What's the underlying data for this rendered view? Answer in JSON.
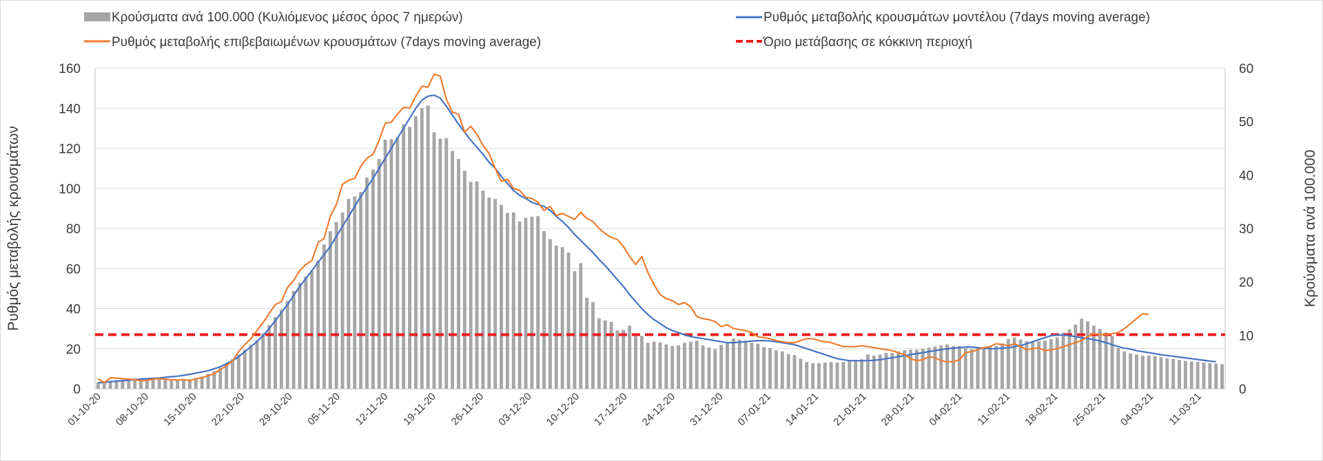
{
  "chart_data": {
    "type": "bar+line",
    "legend": {
      "bars": "Κρούσματα ανά 100.000 (Κυλιόμενος μέσος όρος 7 ημερών)",
      "model": "Ρυθμός μεταβολής κρουσμάτων μοντέλου (7days moving average)",
      "confirmed": "Ρυθμός μεταβολής επιβεβαιωμένων κρουσμάτων (7days moving average)",
      "threshold": "Όριο μετάβασης σε κόκκινη περιοχή"
    },
    "ylabel_left": "Ρυθμός μεταβολής κρουσμάτων",
    "ylabel_right": "Κρούσματα ανά 100.000",
    "ylim_left": [
      0,
      160
    ],
    "ylim_right": [
      0,
      60
    ],
    "yticks_left": [
      "0",
      "20",
      "40",
      "60",
      "80",
      "100",
      "120",
      "140",
      "160"
    ],
    "yticks_right": [
      "0",
      "10",
      "20",
      "30",
      "40",
      "50",
      "60"
    ],
    "x_tick_labels": [
      "01-10-20",
      "08-10-20",
      "15-10-20",
      "22-10-20",
      "29-10-20",
      "05-11-20",
      "12-11-20",
      "19-11-20",
      "26-11-20",
      "03-12-20",
      "10-12-20",
      "17-12-20",
      "24-12-20",
      "31-12-20",
      "07-01-21",
      "14-01-21",
      "21-01-21",
      "28-01-21",
      "04-02-21",
      "11-02-21",
      "18-02-21",
      "25-02-21",
      "04-03-21",
      "11-03-21"
    ],
    "threshold_value": 27,
    "bar_values_per_100k": [
      1.2,
      1.4,
      1.5,
      1.6,
      1.7,
      1.8,
      1.9,
      2.0,
      2.0,
      2.1,
      2.0,
      1.8,
      1.7,
      1.6,
      1.7,
      1.8,
      2.0,
      2.3,
      2.8,
      3.3,
      3.9,
      4.6,
      5.5,
      6.4,
      7.3,
      8.2,
      9.1,
      10.4,
      11.9,
      13.4,
      14.8,
      16.4,
      18.3,
      19.8,
      21.0,
      22.0,
      24.0,
      27.0,
      29.5,
      31.2,
      33.0,
      35.5,
      36.0,
      36.8,
      39.5,
      41.0,
      43.0,
      46.6,
      46.7,
      47.0,
      49.5,
      49.0,
      51.0,
      52.5,
      53.0,
      48.0,
      46.8,
      46.9,
      44.5,
      43.0,
      40.8,
      38.7,
      38.8,
      37.1,
      35.8,
      35.5,
      34.4,
      32.9,
      33.0,
      31.3,
      32.0,
      32.2,
      32.3,
      29.5,
      28.0,
      26.8,
      26.5,
      25.5,
      22.0,
      23.5,
      17.0,
      16.2,
      13.2,
      12.8,
      12.5,
      10.9,
      11.0,
      11.8,
      10.0,
      9.9,
      8.6,
      8.8,
      8.7,
      8.3,
      8.0,
      8.1,
      8.6,
      8.8,
      9.0,
      8.1,
      7.7,
      7.4,
      8.2,
      8.5,
      9.4,
      9.2,
      9.0,
      8.6,
      8.4,
      7.8,
      7.6,
      7.2,
      7.0,
      6.5,
      6.3,
      5.6,
      5.0,
      4.8,
      4.8,
      4.9,
      5.0,
      4.9,
      5.0,
      5.2,
      5.3,
      5.5,
      6.4,
      6.2,
      6.4,
      6.7,
      6.7,
      7.0,
      7.2,
      7.3,
      7.3,
      7.5,
      7.7,
      7.9,
      8.1,
      8.3,
      8.0,
      8.0,
      7.6,
      7.4,
      7.6,
      7.8,
      7.9,
      8.0,
      8.5,
      9.3,
      9.6,
      9.2,
      8.9,
      8.7,
      8.9,
      9.0,
      9.3,
      9.6,
      10.5,
      11.1,
      12.0,
      13.1,
      12.6,
      11.8,
      11.2,
      10.5,
      9.9,
      7.6,
      7.0,
      6.6,
      6.4,
      6.2,
      6.2,
      6.1,
      5.9,
      5.7,
      5.6,
      5.4,
      5.2,
      5.1,
      5.0,
      4.9,
      4.8,
      4.7,
      4.6
    ],
    "model_rate": [
      3.0,
      3.2,
      3.5,
      3.8,
      4.0,
      4.3,
      4.6,
      4.8,
      5.0,
      5.2,
      5.4,
      5.7,
      6.0,
      6.3,
      6.7,
      7.2,
      7.8,
      8.4,
      9.0,
      10.0,
      11.0,
      12.5,
      14.0,
      16.0,
      18.5,
      21.0,
      23.5,
      26.5,
      30.0,
      34.0,
      38.0,
      42.0,
      46.5,
      51.0,
      55.0,
      59.0,
      63.0,
      67.0,
      71.0,
      76.0,
      81.0,
      86.0,
      91.0,
      96.0,
      100.5,
      105.0,
      110.0,
      115.0,
      120.0,
      125.0,
      130.0,
      135.0,
      140.0,
      144.0,
      146.0,
      146.5,
      145.0,
      141.0,
      136.5,
      132.0,
      128.0,
      124.0,
      120.5,
      117.0,
      113.0,
      110.0,
      106.0,
      102.5,
      99.0,
      96.5,
      95.0,
      93.0,
      92.0,
      91.0,
      89.0,
      86.0,
      83.5,
      80.5,
      77.0,
      74.0,
      71.0,
      68.0,
      64.5,
      61.5,
      58.0,
      54.5,
      51.0,
      47.0,
      43.5,
      40.0,
      37.0,
      34.5,
      32.5,
      30.5,
      29.0,
      28.0,
      27.0,
      26.0,
      25.5,
      25.0,
      24.5,
      24.0,
      23.5,
      23.0,
      23.0,
      23.2,
      23.5,
      23.8,
      24.0,
      24.0,
      23.8,
      23.5,
      23.0,
      22.5,
      22.0,
      21.0,
      20.0,
      19.0,
      18.0,
      17.0,
      16.0,
      15.0,
      14.5,
      14.0,
      14.0,
      14.0,
      14.0,
      14.2,
      14.5,
      15.0,
      15.5,
      16.0,
      16.5,
      17.0,
      17.5,
      18.0,
      18.5,
      19.0,
      19.5,
      20.0,
      20.3,
      20.5,
      20.8,
      20.8,
      20.5,
      20.2,
      20.0,
      20.0,
      20.3,
      20.5,
      21.0,
      21.5,
      22.5,
      23.5,
      24.5,
      25.5,
      26.5,
      26.8,
      26.8,
      26.5,
      26.0,
      25.5,
      25.0,
      24.5,
      23.8,
      23.0,
      22.0,
      21.0,
      20.3,
      19.8,
      19.0,
      18.5,
      18.0,
      17.5,
      17.0,
      16.6,
      16.2,
      15.8,
      15.4,
      15.0,
      14.6,
      14.2,
      13.8,
      13.5
    ],
    "confirmed_rate": [
      5.0,
      3.0,
      5.5,
      5.3,
      5.0,
      4.8,
      4.5,
      4.0,
      4.2,
      4.8,
      5.0,
      4.8,
      4.5,
      4.3,
      4.6,
      4.0,
      5.0,
      5.5,
      6.5,
      7.5,
      9.5,
      11.5,
      14.0,
      18.5,
      22.0,
      25.0,
      29.0,
      33.0,
      37.5,
      42.0,
      43.5,
      50.5,
      54.0,
      59.0,
      62.0,
      64.0,
      73.0,
      75.0,
      86.0,
      92.0,
      102.0,
      104.0,
      105.0,
      111.0,
      115.0,
      117.0,
      124.0,
      132.5,
      133.0,
      137.0,
      140.5,
      140.0,
      146.0,
      151.0,
      150.5,
      157.0,
      156.0,
      144.5,
      138.0,
      137.0,
      128.0,
      131.0,
      127.0,
      121.5,
      117.5,
      110.0,
      103.5,
      104.5,
      100.0,
      99.0,
      95.5,
      95.0,
      93.0,
      89.0,
      91.0,
      86.5,
      87.5,
      86.0,
      84.5,
      88.0,
      85.0,
      83.5,
      80.0,
      77.5,
      75.5,
      74.5,
      71.0,
      66.0,
      62.0,
      66.0,
      58.0,
      52.0,
      47.0,
      45.0,
      44.0,
      42.0,
      43.0,
      41.0,
      36.0,
      35.0,
      34.5,
      33.5,
      31.0,
      32.0,
      30.0,
      29.5,
      29.0,
      28.0,
      26.0,
      25.5,
      25.0,
      24.0,
      23.5,
      23.0,
      23.0,
      24.0,
      25.0,
      25.0,
      24.0,
      23.5,
      23.0,
      22.0,
      21.0,
      21.0,
      21.0,
      21.5,
      21.0,
      20.5,
      20.0,
      19.5,
      19.0,
      18.0,
      17.0,
      15.0,
      14.0,
      14.5,
      16.0,
      15.5,
      14.0,
      13.5,
      13.5,
      14.5,
      18.0,
      18.5,
      19.5,
      20.5,
      21.0,
      22.5,
      22.0,
      21.5,
      22.5,
      21.0,
      19.5,
      20.0,
      20.5,
      19.0,
      19.5,
      20.0,
      21.0,
      22.0,
      23.0,
      24.0,
      26.0,
      27.5,
      27.0,
      27.0,
      27.5,
      28.0,
      30.0,
      32.5,
      35.0,
      37.5,
      37.0
    ]
  }
}
